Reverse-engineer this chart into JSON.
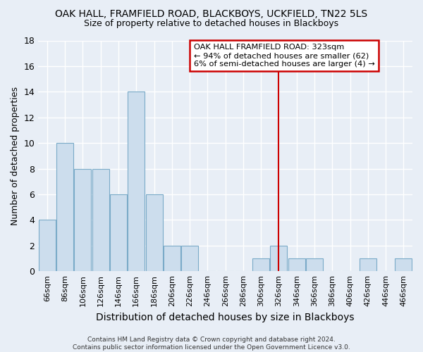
{
  "title": "OAK HALL, FRAMFIELD ROAD, BLACKBOYS, UCKFIELD, TN22 5LS",
  "subtitle": "Size of property relative to detached houses in Blackboys",
  "xlabel": "Distribution of detached houses by size in Blackboys",
  "ylabel": "Number of detached properties",
  "footer": "Contains HM Land Registry data © Crown copyright and database right 2024.\nContains public sector information licensed under the Open Government Licence v3.0.",
  "bar_labels": [
    "66sqm",
    "86sqm",
    "106sqm",
    "126sqm",
    "146sqm",
    "166sqm",
    "186sqm",
    "206sqm",
    "226sqm",
    "246sqm",
    "266sqm",
    "286sqm",
    "306sqm",
    "326sqm",
    "346sqm",
    "366sqm",
    "386sqm",
    "406sqm",
    "426sqm",
    "446sqm",
    "466sqm"
  ],
  "bar_values": [
    4,
    10,
    8,
    8,
    6,
    14,
    6,
    2,
    2,
    0,
    0,
    0,
    1,
    2,
    1,
    1,
    0,
    0,
    1,
    0,
    1
  ],
  "bar_color": "#ccdded",
  "bar_edge_color": "#7aaac8",
  "background_color": "#e8eef6",
  "grid_color": "#ffffff",
  "vline_x": 13.0,
  "vline_color": "#cc0000",
  "annotation_text": "OAK HALL FRAMFIELD ROAD: 323sqm\n← 94% of detached houses are smaller (62)\n6% of semi-detached houses are larger (4) →",
  "annotation_box_color": "#ffffff",
  "annotation_box_edge_color": "#cc0000",
  "ylim": [
    0,
    18
  ],
  "yticks": [
    0,
    2,
    4,
    6,
    8,
    10,
    12,
    14,
    16,
    18
  ]
}
